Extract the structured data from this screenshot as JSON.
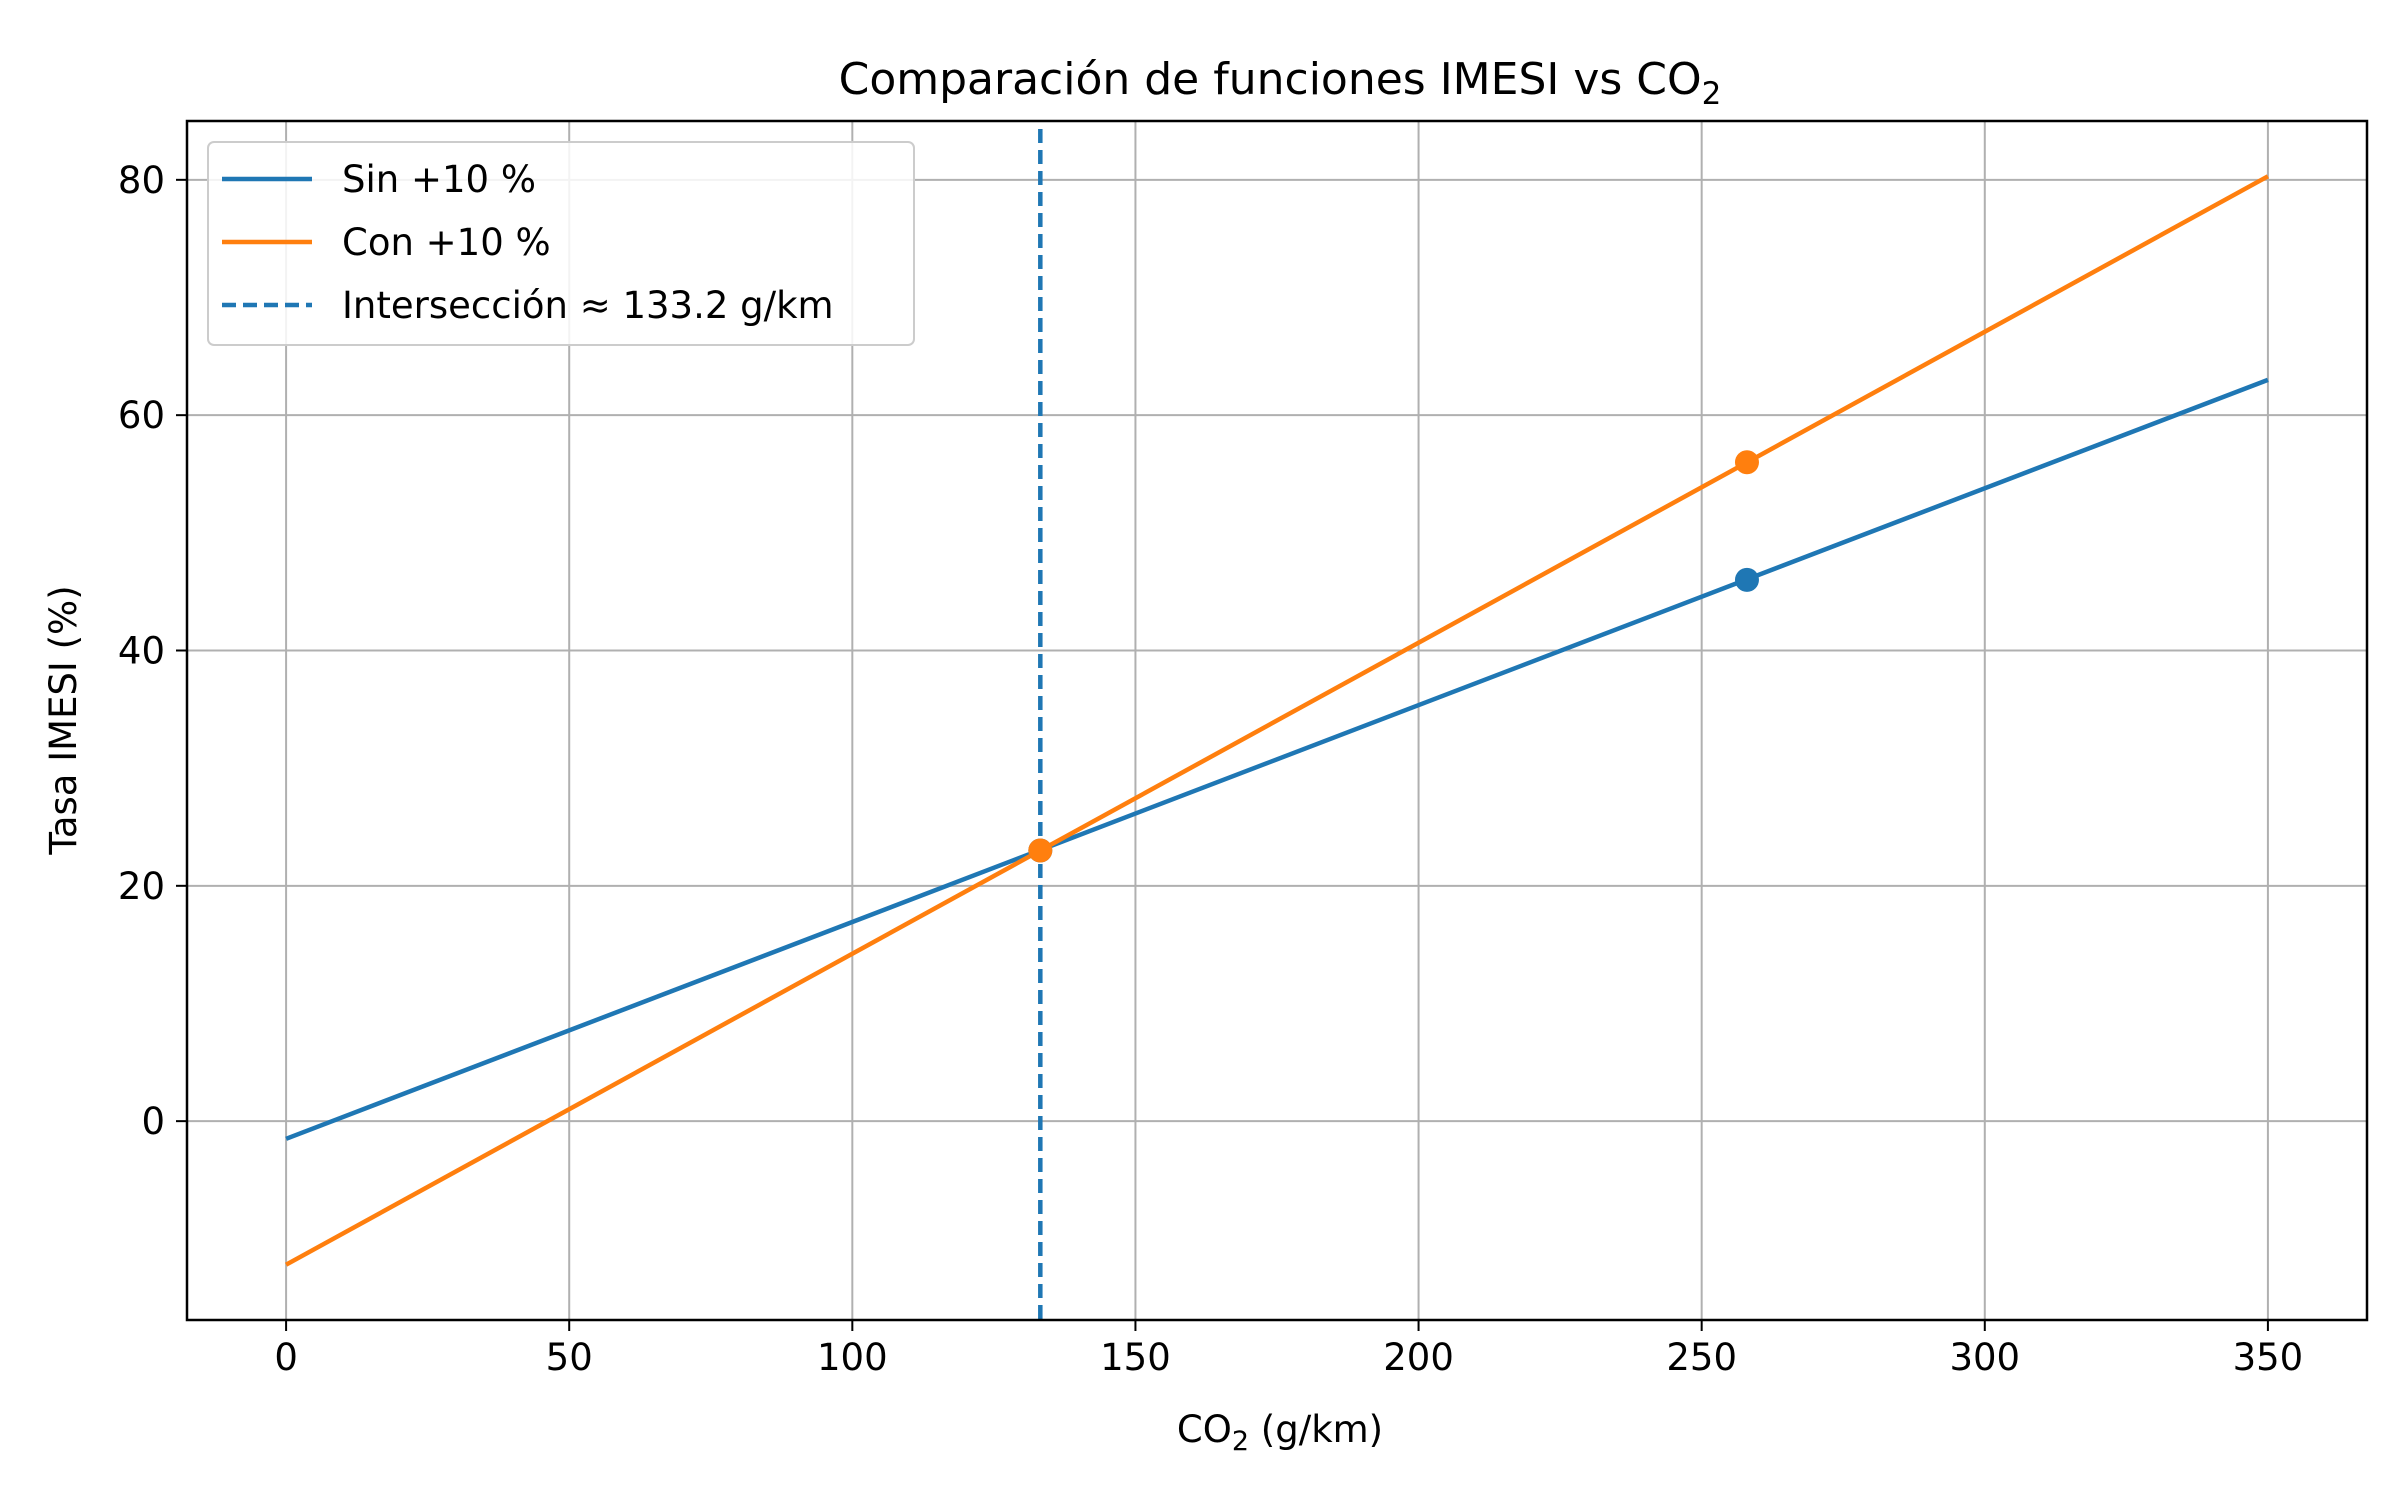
{
  "chart_data": {
    "type": "line",
    "title": "Comparación de funciones IMESI vs CO",
    "title_sub": "2",
    "xlabel_pre": "CO",
    "xlabel_sub": "2",
    "xlabel_post": " (g/km)",
    "ylabel": "Tasa IMESI (%)",
    "xlim": [
      -17.5,
      367.5
    ],
    "ylim": [
      -16.9,
      85
    ],
    "xticks": [
      0,
      50,
      100,
      150,
      200,
      250,
      300,
      350
    ],
    "yticks": [
      0,
      20,
      40,
      60,
      80
    ],
    "grid": true,
    "legend_position": "upper-left",
    "series": [
      {
        "name": "Sin +10 %",
        "color": "#1f77b4",
        "x": [
          0,
          350
        ],
        "y": [
          -1.5,
          63
        ]
      },
      {
        "name": "Con +10 %",
        "color": "#ff7f0e",
        "x": [
          0,
          350
        ],
        "y": [
          -12.2,
          80.3
        ]
      }
    ],
    "vline": {
      "name": "Intersección ≈ 133.2 g/km",
      "x": 133.2,
      "color": "#1f77b4",
      "style": "dashed"
    },
    "points": [
      {
        "series": 0,
        "x": 258,
        "y": 46.0,
        "color": "#1f77b4"
      },
      {
        "series": 1,
        "x": 258,
        "y": 56.0,
        "color": "#ff7f0e"
      },
      {
        "series": 0,
        "x": 133.2,
        "y": 23.0,
        "color": "#1f77b4"
      },
      {
        "series": 1,
        "x": 133.2,
        "y": 23.0,
        "color": "#ff7f0e"
      }
    ]
  }
}
